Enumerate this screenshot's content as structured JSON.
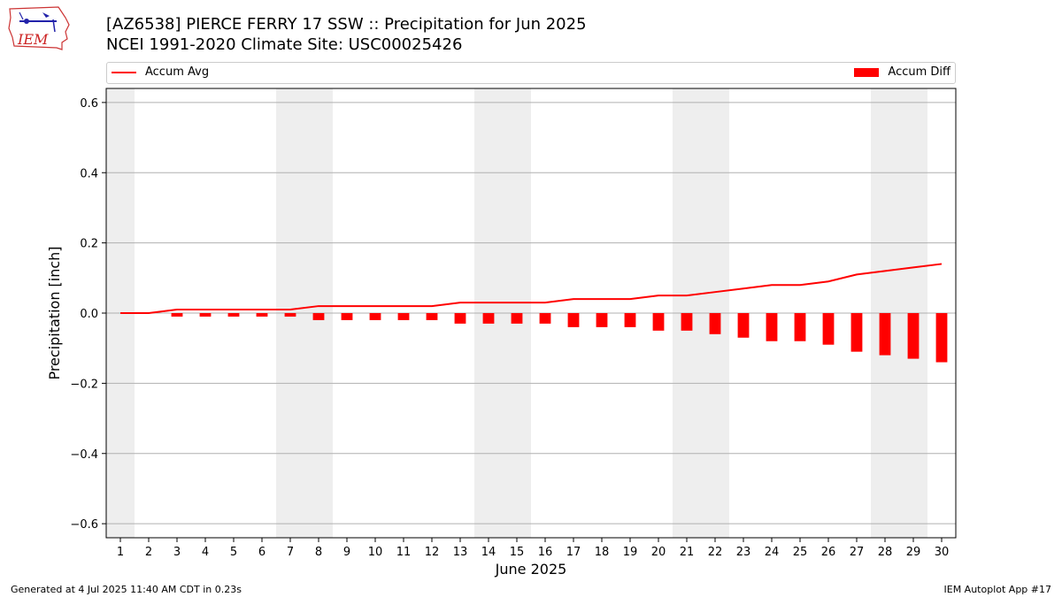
{
  "header": {
    "title_line1": "[AZ6538] PIERCE FERRY 17 SSW :: Precipitation for Jun 2025",
    "title_line2": "NCEI 1991-2020 Climate Site: USC00025426"
  },
  "logo": {
    "text": "IEM",
    "icon": "iem-iowa-logo-icon"
  },
  "footer": {
    "left": "Generated at 4 Jul 2025 11:40 AM CDT in 0.23s",
    "right": "IEM Autoplot App #17"
  },
  "colors": {
    "series": "#ff0000",
    "weekend_band": "#eeeeee",
    "grid": "#b0b0b0"
  },
  "chart_data": {
    "type": "bar",
    "xlabel": "June 2025",
    "ylabel": "Precipitation [inch]",
    "ylim": [
      -0.64,
      0.64
    ],
    "yticks": [
      -0.6,
      -0.4,
      -0.2,
      0.0,
      0.2,
      0.4,
      0.6
    ],
    "ytick_labels": [
      "−0.6",
      "−0.4",
      "−0.2",
      "0.0",
      "0.2",
      "0.4",
      "0.6"
    ],
    "grid": "horizontal",
    "legend_placement": "top",
    "x": [
      1,
      2,
      3,
      4,
      5,
      6,
      7,
      8,
      9,
      10,
      11,
      12,
      13,
      14,
      15,
      16,
      17,
      18,
      19,
      20,
      21,
      22,
      23,
      24,
      25,
      26,
      27,
      28,
      29,
      30
    ],
    "weekend_days": [
      1,
      7,
      8,
      14,
      15,
      21,
      22,
      28,
      29
    ],
    "series": [
      {
        "name": "Accum Avg",
        "kind": "line",
        "color": "#ff0000",
        "values": [
          0.0,
          0.0,
          0.01,
          0.01,
          0.01,
          0.01,
          0.01,
          0.02,
          0.02,
          0.02,
          0.02,
          0.02,
          0.03,
          0.03,
          0.03,
          0.03,
          0.04,
          0.04,
          0.04,
          0.05,
          0.05,
          0.06,
          0.07,
          0.08,
          0.08,
          0.09,
          0.11,
          0.12,
          0.13,
          0.14
        ]
      },
      {
        "name": "Accum Diff",
        "kind": "bar",
        "color": "#ff0000",
        "values": [
          0.0,
          0.0,
          -0.01,
          -0.01,
          -0.01,
          -0.01,
          -0.01,
          -0.02,
          -0.02,
          -0.02,
          -0.02,
          -0.02,
          -0.03,
          -0.03,
          -0.03,
          -0.03,
          -0.04,
          -0.04,
          -0.04,
          -0.05,
          -0.05,
          -0.06,
          -0.07,
          -0.08,
          -0.08,
          -0.09,
          -0.11,
          -0.12,
          -0.13,
          -0.14
        ]
      }
    ]
  }
}
